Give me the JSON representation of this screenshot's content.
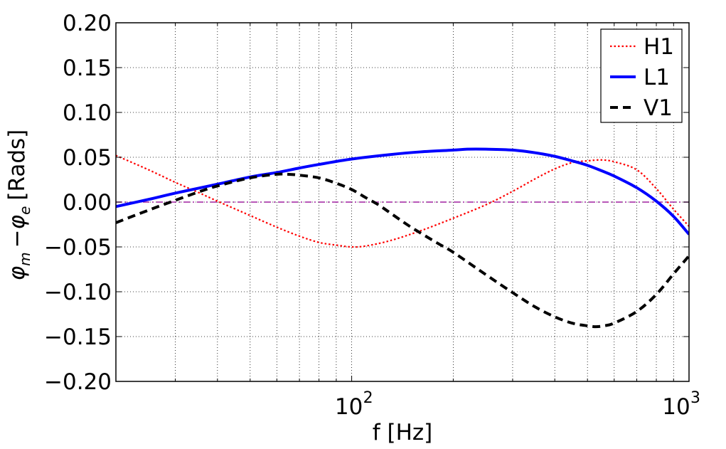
{
  "chart_data": {
    "type": "line",
    "title": "",
    "xlabel": "f [Hz]",
    "ylabel": "ϕ_m − ϕ_e [Rads]",
    "ylabel_parts": {
      "phi_m": "φ",
      "sub_m": "m",
      "minus": "−",
      "phi_e": "φ",
      "sub_e": "e",
      "unit": "[Rads]"
    },
    "xscale": "log",
    "xlim": [
      20,
      1000
    ],
    "ylim": [
      -0.2,
      0.2
    ],
    "grid": true,
    "legend_position": "top-right",
    "yticks": [
      -0.2,
      -0.15,
      -0.1,
      -0.05,
      0.0,
      0.05,
      0.1,
      0.15,
      0.2
    ],
    "ytick_labels": [
      "−0.20",
      "−0.15",
      "−0.10",
      "−0.05",
      "0.00",
      "0.05",
      "0.10",
      "0.15",
      "0.20"
    ],
    "xticks_major": [
      {
        "value": 100,
        "base": "10",
        "exp": "2"
      },
      {
        "value": 1000,
        "base": "10",
        "exp": "3"
      }
    ],
    "xticks_minor": [
      20,
      30,
      40,
      50,
      60,
      70,
      80,
      90,
      200,
      300,
      400,
      500,
      600,
      700,
      800,
      900
    ],
    "reference_line": {
      "y": 0.0,
      "color": "#a020a0",
      "style": "dash-dot"
    },
    "series": [
      {
        "name": "H1",
        "color": "#ff0000",
        "style": "dotted",
        "x": [
          20,
          25,
          30,
          35,
          40,
          50,
          60,
          70,
          80,
          90,
          100,
          110,
          130,
          160,
          200,
          250,
          300,
          350,
          400,
          450,
          500,
          550,
          600,
          700,
          800,
          900,
          1000
        ],
        "y": [
          0.052,
          0.036,
          0.022,
          0.011,
          0.001,
          -0.015,
          -0.028,
          -0.038,
          -0.045,
          -0.048,
          -0.05,
          -0.049,
          -0.043,
          -0.032,
          -0.018,
          -0.003,
          0.012,
          0.026,
          0.037,
          0.044,
          0.046,
          0.047,
          0.045,
          0.036,
          0.015,
          -0.008,
          -0.027
        ]
      },
      {
        "name": "L1",
        "color": "#0000ff",
        "style": "solid",
        "x": [
          20,
          25,
          30,
          40,
          50,
          60,
          70,
          80,
          100,
          130,
          160,
          200,
          220,
          250,
          300,
          350,
          400,
          450,
          500,
          550,
          600,
          700,
          800,
          900,
          1000
        ],
        "y": [
          -0.005,
          0.003,
          0.01,
          0.02,
          0.028,
          0.033,
          0.038,
          0.042,
          0.048,
          0.053,
          0.056,
          0.058,
          0.059,
          0.059,
          0.058,
          0.055,
          0.051,
          0.046,
          0.041,
          0.035,
          0.029,
          0.016,
          0.001,
          -0.016,
          -0.036
        ]
      },
      {
        "name": "V1",
        "color": "#000000",
        "style": "dashed",
        "x": [
          20,
          25,
          30,
          35,
          40,
          50,
          60,
          65,
          70,
          80,
          90,
          100,
          110,
          120,
          130,
          150,
          180,
          200,
          250,
          300,
          350,
          400,
          450,
          500,
          530,
          560,
          600,
          700,
          800,
          900,
          1000
        ],
        "y": [
          -0.023,
          -0.009,
          0.002,
          0.011,
          0.018,
          0.027,
          0.031,
          0.031,
          0.03,
          0.027,
          0.021,
          0.014,
          0.005,
          -0.003,
          -0.012,
          -0.028,
          -0.046,
          -0.056,
          -0.081,
          -0.101,
          -0.117,
          -0.128,
          -0.135,
          -0.138,
          -0.139,
          -0.138,
          -0.135,
          -0.122,
          -0.103,
          -0.08,
          -0.06
        ]
      }
    ]
  }
}
